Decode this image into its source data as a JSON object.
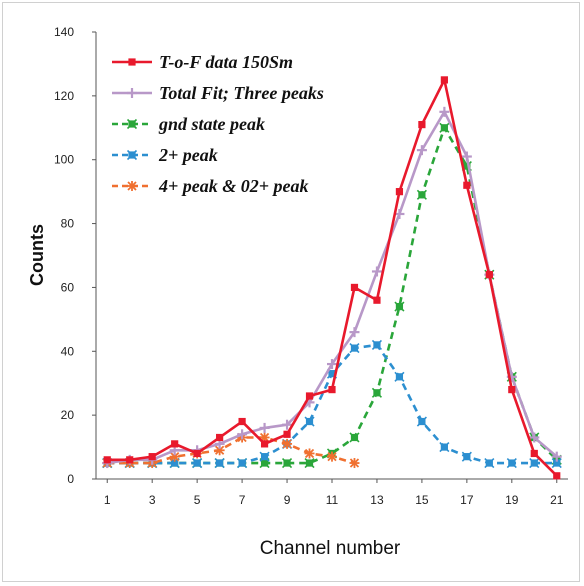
{
  "chart_data": {
    "type": "line",
    "xlabel": "Channel number",
    "ylabel": "Counts",
    "xlim": [
      0.5,
      21.5
    ],
    "ylim": [
      0,
      140
    ],
    "x_ticks": [
      "1",
      "3",
      "5",
      "7",
      "9",
      "11",
      "13",
      "15",
      "17",
      "19",
      "21"
    ],
    "y_ticks": [
      "0",
      "20",
      "40",
      "60",
      "80",
      "100",
      "120",
      "140"
    ],
    "grid": false,
    "legend_position": "top-left",
    "series": [
      {
        "name": "T-o-F data 150Sm",
        "color": "#e8192c",
        "dash": "solid",
        "marker": "square",
        "x": [
          1,
          2,
          3,
          4,
          5,
          6,
          7,
          8,
          9,
          10,
          11,
          12,
          13,
          14,
          15,
          16,
          17,
          18,
          19,
          20,
          21
        ],
        "y": [
          6,
          6,
          7,
          11,
          8,
          13,
          18,
          11,
          14,
          26,
          28,
          60,
          56,
          90,
          111,
          125,
          92,
          64,
          28,
          8,
          1
        ]
      },
      {
        "name": "Total Fit; Three peaks",
        "color": "#b898c8",
        "dash": "solid",
        "marker": "plus",
        "x": [
          1,
          2,
          3,
          4,
          5,
          6,
          7,
          8,
          9,
          10,
          11,
          12,
          13,
          14,
          15,
          16,
          17,
          18,
          19,
          20,
          21
        ],
        "y": [
          5,
          6,
          6,
          9,
          9,
          11,
          14,
          16,
          17,
          24,
          36,
          46,
          65,
          83,
          103,
          115,
          101,
          64,
          32,
          13,
          7
        ]
      },
      {
        "name": "gnd state peak",
        "color": "#2aa63a",
        "dash": "dashed",
        "marker": "x-square",
        "x": [
          1,
          2,
          3,
          4,
          5,
          6,
          7,
          8,
          9,
          10,
          11,
          12,
          13,
          14,
          15,
          16,
          17,
          18,
          19,
          20,
          21
        ],
        "y": [
          5,
          5,
          5,
          5,
          5,
          5,
          5,
          5,
          5,
          5,
          8,
          13,
          27,
          54,
          89,
          110,
          98,
          64,
          32,
          13,
          6
        ]
      },
      {
        "name": "2+ peak",
        "color": "#2c8fd0",
        "dash": "dashed",
        "marker": "x-square",
        "x": [
          1,
          2,
          3,
          4,
          5,
          6,
          7,
          8,
          9,
          10,
          11,
          12,
          13,
          14,
          15,
          16,
          17,
          18,
          19,
          20,
          21
        ],
        "y": [
          5,
          5,
          5,
          5,
          5,
          5,
          5,
          7,
          11,
          18,
          33,
          41,
          42,
          32,
          18,
          10,
          7,
          5,
          5,
          5,
          5
        ]
      },
      {
        "name": "4+ peak & 02+ peak",
        "color": "#f07030",
        "dash": "dashed",
        "marker": "asterisk",
        "x": [
          1,
          2,
          3,
          4,
          5,
          6,
          7,
          8,
          9,
          10,
          11,
          12
        ],
        "y": [
          5,
          5,
          5,
          7,
          8,
          9,
          13,
          13,
          11,
          8,
          7,
          5
        ]
      }
    ]
  }
}
